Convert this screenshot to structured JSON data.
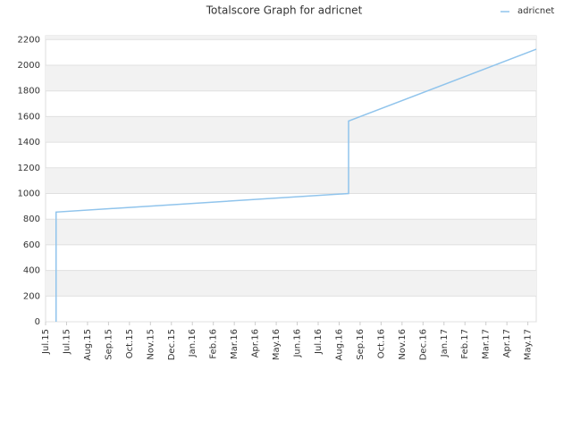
{
  "chart_data": {
    "type": "line",
    "title": "Totalscore Graph for adricnet",
    "series": [
      {
        "name": "adricnet",
        "color": "#90c4ec",
        "x": [
          0.5,
          0.5,
          14.45,
          14.45,
          23.4
        ],
        "values": [
          0,
          855,
          1000,
          1565,
          2125
        ]
      }
    ],
    "xlim": [
      0,
      23.4
    ],
    "xticks": [
      {
        "value": 0,
        "label": "Jul.15"
      },
      {
        "value": 1,
        "label": "Jul.15"
      },
      {
        "value": 2,
        "label": "Aug.15"
      },
      {
        "value": 3,
        "label": "Sep.15"
      },
      {
        "value": 4,
        "label": "Oct.15"
      },
      {
        "value": 5,
        "label": "Nov.15"
      },
      {
        "value": 6,
        "label": "Dec.15"
      },
      {
        "value": 7,
        "label": "Jan.16"
      },
      {
        "value": 8,
        "label": "Feb.16"
      },
      {
        "value": 9,
        "label": "Mar.16"
      },
      {
        "value": 10,
        "label": "Apr.16"
      },
      {
        "value": 11,
        "label": "May.16"
      },
      {
        "value": 12,
        "label": "Jun.16"
      },
      {
        "value": 13,
        "label": "Jul.16"
      },
      {
        "value": 14,
        "label": "Aug.16"
      },
      {
        "value": 15,
        "label": "Sep.16"
      },
      {
        "value": 16,
        "label": "Oct.16"
      },
      {
        "value": 17,
        "label": "Nov.16"
      },
      {
        "value": 18,
        "label": "Dec.16"
      },
      {
        "value": 19,
        "label": "Jan.17"
      },
      {
        "value": 20,
        "label": "Feb.17"
      },
      {
        "value": 21,
        "label": "Mar.17"
      },
      {
        "value": 22,
        "label": "Apr.17"
      },
      {
        "value": 23,
        "label": "May.17"
      }
    ],
    "ylim": [
      0,
      2230
    ],
    "yticks": [
      0,
      200,
      400,
      600,
      800,
      1000,
      1200,
      1400,
      1600,
      1800,
      2000,
      2200
    ],
    "grid": true,
    "legend": "top-right"
  }
}
